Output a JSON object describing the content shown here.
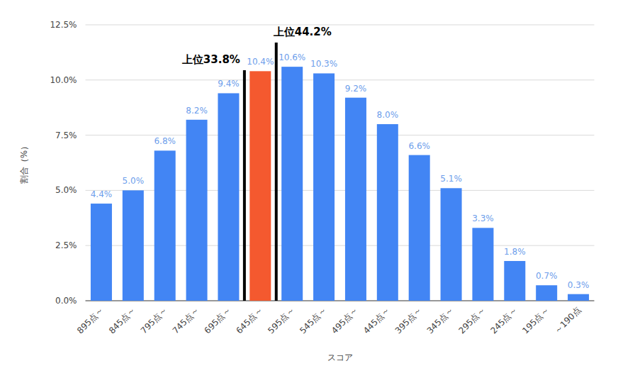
{
  "chart_data": {
    "type": "bar",
    "x_label": "スコア",
    "y_label": "割合（%）",
    "categories": [
      "895点～",
      "845点～",
      "795点～",
      "745点～",
      "695点～",
      "645点～",
      "595点～",
      "545点～",
      "495点～",
      "445点～",
      "395点～",
      "345点～",
      "295点～",
      "245点～",
      "195点～",
      "～190点"
    ],
    "values": [
      4.4,
      5.0,
      6.8,
      8.2,
      9.4,
      10.4,
      10.6,
      10.3,
      9.2,
      8.0,
      6.6,
      5.1,
      3.3,
      1.8,
      0.7,
      0.3
    ],
    "value_labels": [
      "4.4%",
      "5.0%",
      "6.8%",
      "8.2%",
      "9.4%",
      "10.4%",
      "10.6%",
      "10.3%",
      "9.2%",
      "8.0%",
      "6.6%",
      "5.1%",
      "3.3%",
      "1.8%",
      "0.7%",
      "0.3%"
    ],
    "colors": [
      "#4285f4",
      "#4285f4",
      "#4285f4",
      "#4285f4",
      "#4285f4",
      "#f4592f",
      "#4285f4",
      "#4285f4",
      "#4285f4",
      "#4285f4",
      "#4285f4",
      "#4285f4",
      "#4285f4",
      "#4285f4",
      "#4285f4",
      "#4285f4"
    ],
    "ylim": [
      0,
      12.5
    ],
    "yticks": [
      {
        "value": 0,
        "label": "0.0%"
      },
      {
        "value": 2.5,
        "label": "2.5%"
      },
      {
        "value": 5,
        "label": "5.0%"
      },
      {
        "value": 7.5,
        "label": "7.5%"
      },
      {
        "value": 10,
        "label": "10.0%"
      },
      {
        "value": 12.5,
        "label": "12.5%"
      }
    ],
    "grid": true,
    "data_labels": true,
    "annotations": [
      {
        "label": "上位33.8%",
        "x": 4.5
      },
      {
        "label": "上位44.2%",
        "x": 5.5
      }
    ]
  }
}
